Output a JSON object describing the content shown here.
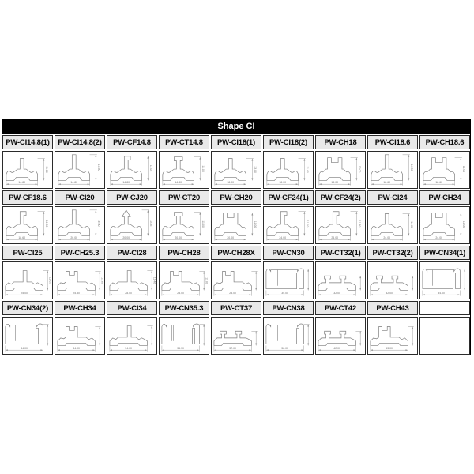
{
  "table": {
    "title": "Shape CI",
    "title_bar_color": "#000000",
    "title_text_color": "#ffffff",
    "label_bg_color": "#e9e9e9",
    "border_color": "#2b2b2b",
    "drawing_stroke_color": "#7a7a7a",
    "dimension_color": "#8f8f8f",
    "columns": 9,
    "rows": [
      {
        "cells": [
          {
            "label": "PW-CI14.8(1)",
            "shape": "stem-profile-icon",
            "width_dim": "14.80",
            "height_dim": "11.80"
          },
          {
            "label": "PW-CI14.8(2)",
            "shape": "tall-stem-profile-icon",
            "width_dim": "14.80",
            "height_dim": "13.50"
          },
          {
            "label": "PW-CF14.8",
            "shape": "hook-profile-icon",
            "width_dim": "14.80",
            "height_dim": "11.05"
          },
          {
            "label": "PW-CT14.8",
            "shape": "tee-profile-icon",
            "width_dim": "14.80",
            "height_dim": "11.00"
          },
          {
            "label": "PW-CI18(1)",
            "shape": "stem-profile-icon",
            "width_dim": "18.00",
            "height_dim": "13.00"
          },
          {
            "label": "PW-CI18(2)",
            "shape": "stem-profile-icon",
            "width_dim": "18.00",
            "height_dim": "11.40"
          },
          {
            "label": "PW-CH18",
            "shape": "slot-profile-icon",
            "width_dim": "18.00",
            "height_dim": "10.00"
          },
          {
            "label": "PW-CI18.6",
            "shape": "tall-stem-profile-icon",
            "width_dim": "18.60",
            "height_dim": "14.50"
          },
          {
            "label": "PW-CH18.6",
            "shape": "slot-profile-icon",
            "width_dim": "18.60",
            "height_dim": "11.00"
          }
        ]
      },
      {
        "cells": [
          {
            "label": "PW-CF18.6",
            "shape": "hook-profile-icon",
            "width_dim": "18.60",
            "height_dim": "11.00"
          },
          {
            "label": "PW-CI20",
            "shape": "tall-stem-profile-icon",
            "width_dim": "20.00",
            "height_dim": "16.00"
          },
          {
            "label": "PW-CJ20",
            "shape": "arrow-profile-icon",
            "width_dim": "20.00",
            "height_dim": "13.85"
          },
          {
            "label": "PW-CT20",
            "shape": "tee-profile-icon",
            "width_dim": "20.00",
            "height_dim": "11.00"
          },
          {
            "label": "PW-CH20",
            "shape": "slot-profile-icon",
            "width_dim": "20.00",
            "height_dim": "11.00"
          },
          {
            "label": "PW-CF24(1)",
            "shape": "hook-profile-icon",
            "width_dim": "24.00",
            "height_dim": "11.10"
          },
          {
            "label": "PW-CF24(2)",
            "shape": "hook-profile-icon",
            "width_dim": "24.00",
            "height_dim": "11.30"
          },
          {
            "label": "PW-CI24",
            "shape": "stem-profile-icon",
            "width_dim": "24.00",
            "height_dim": "14.00"
          },
          {
            "label": "PW-CH24",
            "shape": "slot-profile-icon",
            "width_dim": "24.00",
            "height_dim": "11.00"
          }
        ]
      },
      {
        "cells": [
          {
            "label": "PW-CI25",
            "shape": "wide-stem-profile-icon",
            "width_dim": "25.00",
            "height_dim": "11.05"
          },
          {
            "label": "PW-CH25.3",
            "shape": "wide-slot-profile-icon",
            "width_dim": "25.30",
            "height_dim": "13.80"
          },
          {
            "label": "PW-CI28",
            "shape": "wide-stem-profile-icon",
            "width_dim": "28.00",
            "height_dim": "11.40"
          },
          {
            "label": "PW-CH28",
            "shape": "wide-slot-profile-icon",
            "width_dim": "28.00",
            "height_dim": "11.00"
          },
          {
            "label": "PW-CH28X",
            "shape": "wide-slot-profile-icon",
            "width_dim": "28.00",
            "height_dim": ""
          },
          {
            "label": "PW-CN30",
            "shape": "channel-profile-icon",
            "width_dim": "30.00",
            "height_dim": ""
          },
          {
            "label": "PW-CT32(1)",
            "shape": "wide-tee-profile-icon",
            "width_dim": "32.00",
            "height_dim": ""
          },
          {
            "label": "PW-CT32(2)",
            "shape": "wide-tee-profile-icon",
            "width_dim": "32.00",
            "height_dim": ""
          },
          {
            "label": "PW-CN34(1)",
            "shape": "channel-profile-icon",
            "width_dim": "34.00",
            "height_dim": ""
          }
        ]
      },
      {
        "cells": [
          {
            "label": "PW-CN34(2)",
            "shape": "channel-profile-icon",
            "width_dim": "34.00",
            "height_dim": ""
          },
          {
            "label": "PW-CH34",
            "shape": "wide-slot-profile-icon",
            "width_dim": "34.00",
            "height_dim": ""
          },
          {
            "label": "PW-CI34",
            "shape": "wide-stem-profile-icon",
            "width_dim": "34.00",
            "height_dim": ""
          },
          {
            "label": "PW-CN35.3",
            "shape": "channel-profile-icon",
            "width_dim": "35.30",
            "height_dim": ""
          },
          {
            "label": "PW-CT37",
            "shape": "wide-tee-profile-icon",
            "width_dim": "37.00",
            "height_dim": ""
          },
          {
            "label": "PW-CN38",
            "shape": "channel-profile-icon",
            "width_dim": "38.00",
            "height_dim": ""
          },
          {
            "label": "PW-CT42",
            "shape": "wide-tee-profile-icon",
            "width_dim": "42.00",
            "height_dim": ""
          },
          {
            "label": "PW-CH43",
            "shape": "wide-slot-profile-icon",
            "width_dim": "43.00",
            "height_dim": ""
          },
          {
            "label": "",
            "shape": "empty",
            "width_dim": "",
            "height_dim": ""
          }
        ]
      }
    ]
  }
}
